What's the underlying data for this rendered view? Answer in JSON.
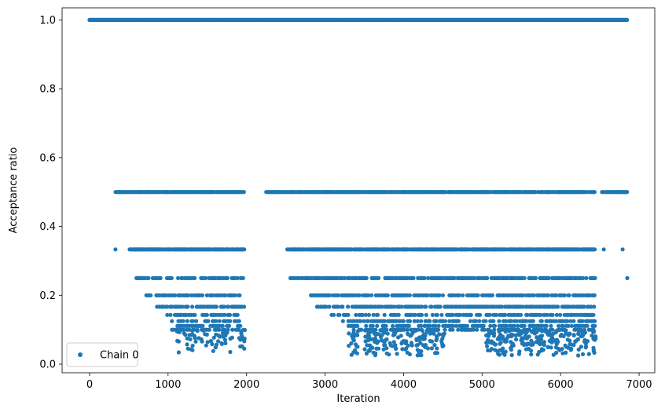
{
  "chart_data": {
    "type": "scatter",
    "xlabel": "Iteration",
    "ylabel": "Acceptance ratio",
    "xlim": [
      -350,
      7200
    ],
    "ylim": [
      -0.025,
      1.035
    ],
    "x_ticks": [
      0,
      1000,
      2000,
      3000,
      4000,
      5000,
      6000,
      7000
    ],
    "y_ticks": [
      0.0,
      0.2,
      0.4,
      0.6,
      0.8,
      1.0
    ],
    "x_tick_labels": [
      "0",
      "1000",
      "2000",
      "3000",
      "4000",
      "5000",
      "6000",
      "7000"
    ],
    "y_tick_labels": [
      "0.0",
      "0.2",
      "0.4",
      "0.6",
      "0.8",
      "1.0"
    ],
    "grid": false,
    "legend_position": "lower-left",
    "colors": {
      "series": "#1f77b4",
      "axes": "#000000"
    },
    "series": [
      {
        "name": "Chain 0",
        "marker": "circle",
        "levels": [
          {
            "y": 1.0,
            "x_ranges": [
              [
                0,
                6850
              ]
            ]
          },
          {
            "y": 0.5,
            "x_ranges": [
              [
                320,
                1970
              ],
              [
                2240,
                6440
              ],
              [
                6530,
                6850
              ]
            ]
          },
          {
            "y": 0.3333,
            "x_ranges": [
              [
                510,
                1970
              ],
              [
                2520,
                6440
              ]
            ],
            "extra_x": [
              330,
              6550,
              6790
            ]
          },
          {
            "y": 0.25,
            "x_ranges": [
              [
                540,
                1970
              ],
              [
                2560,
                6440
              ]
            ],
            "extra_x": [
              6850
            ]
          },
          {
            "y": 0.2,
            "x_ranges": [
              [
                710,
                1970
              ],
              [
                2820,
                6440
              ]
            ]
          },
          {
            "y": 0.1667,
            "x_ranges": [
              [
                860,
                1970
              ],
              [
                2900,
                6440
              ]
            ]
          },
          {
            "y": 0.1429,
            "x_ranges": [
              [
                990,
                1970
              ],
              [
                3070,
                6440
              ]
            ]
          },
          {
            "y": 0.125,
            "x_ranges": [
              [
                1050,
                1970
              ],
              [
                3200,
                6440
              ]
            ]
          },
          {
            "y": 0.1111,
            "x_ranges": [
              [
                1120,
                1970
              ],
              [
                3300,
                6440
              ]
            ]
          },
          {
            "y": 0.1,
            "x_ranges": [
              [
                1050,
                1970
              ],
              [
                3350,
                6440
              ]
            ]
          }
        ],
        "low_clusters": [
          {
            "x_range": [
              1100,
              1980
            ],
            "y_range": [
              0.03,
              0.1
            ],
            "count": 70
          },
          {
            "x_range": [
              3300,
              4520
            ],
            "y_range": [
              0.025,
              0.1
            ],
            "count": 170
          },
          {
            "x_range": [
              5050,
              6450
            ],
            "y_range": [
              0.025,
              0.1
            ],
            "count": 230
          }
        ]
      }
    ]
  }
}
